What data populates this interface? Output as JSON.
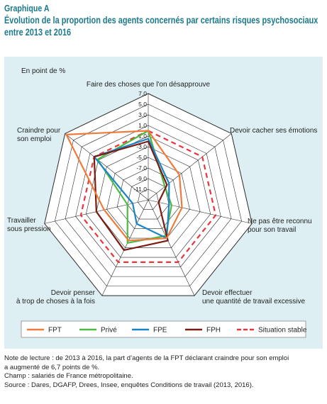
{
  "header": {
    "label": "Graphique A",
    "title_line1": "Évolution de la proportion des agents concernés par certains risques psychosociaux",
    "title_line2": "entre 2013 et 2016"
  },
  "chart_data": {
    "type": "radar",
    "unit_label": "En point de %",
    "axes": [
      "Faire des choses que l'on désapprouve",
      "Devoir cacher ses émotions",
      "Ne pas être reconnu pour son travail",
      "Devoir effectuer une quantité de travail excessive",
      "Devoir penser à trop de choses à la fois",
      "Travailler sous pression",
      "Craindre pour son emploi"
    ],
    "axis_labels": [
      [
        "Faire des choses que l'on désapprouve"
      ],
      [
        "Devoir cacher ses émotions"
      ],
      [
        "Ne pas être reconnu",
        "pour son travail"
      ],
      [
        "Devoir effectuer",
        "une quantité de travail excessive"
      ],
      [
        "Devoir penser",
        "à trop de choses à la fois"
      ],
      [
        "Travailler",
        "sous pression"
      ],
      [
        "Craindre pour",
        "son emploi"
      ]
    ],
    "ticks": [
      "7,0",
      "5,0",
      "3,0",
      "1,0",
      "-1,0",
      "-3,0",
      "-5,0",
      "-7,0",
      "-9,0",
      "-11,0"
    ],
    "rmin": -13,
    "rmax": 7,
    "series": [
      {
        "name": "FPT",
        "color": "#ef7a3a",
        "dash": false,
        "values": [
          0.0,
          -5.5,
          -6.5,
          -5.0,
          -4.5,
          -4.5,
          6.7
        ]
      },
      {
        "name": "Privé",
        "color": "#4cba43",
        "dash": false,
        "values": [
          0.0,
          -9.0,
          -8.5,
          -5.5,
          -4.0,
          -9.0,
          -0.8
        ]
      },
      {
        "name": "FPE",
        "color": "#1b84c7",
        "dash": false,
        "values": [
          -1.5,
          -8.0,
          -9.0,
          -5.0,
          -8.0,
          -10.0,
          0.0
        ]
      },
      {
        "name": "FPH",
        "color": "#7b1c13",
        "dash": false,
        "values": [
          -2.0,
          -8.5,
          -11.0,
          -4.5,
          -2.5,
          -3.0,
          0.0
        ]
      },
      {
        "name": "Situation stable",
        "color": "#e8353c",
        "dash": true,
        "values": [
          0,
          0,
          0,
          0,
          0,
          0,
          0
        ]
      }
    ],
    "legend": [
      "FPT",
      "Privé",
      "FPE",
      "FPH",
      "Situation stable"
    ],
    "legend_position": "bottom"
  },
  "notes": {
    "line1": "Note de lecture : de 2013 à 2016, la part d’agents de la FPT déclarant craindre pour son emploi",
    "line2": "a augmenté de 6,7 points de %.",
    "line3": "Champ : salariés de France métropolitaine.",
    "line4": "Source : Dares, DGAFP, Drees, Insee, enquêtes Conditions de travail (2013, 2016)."
  }
}
